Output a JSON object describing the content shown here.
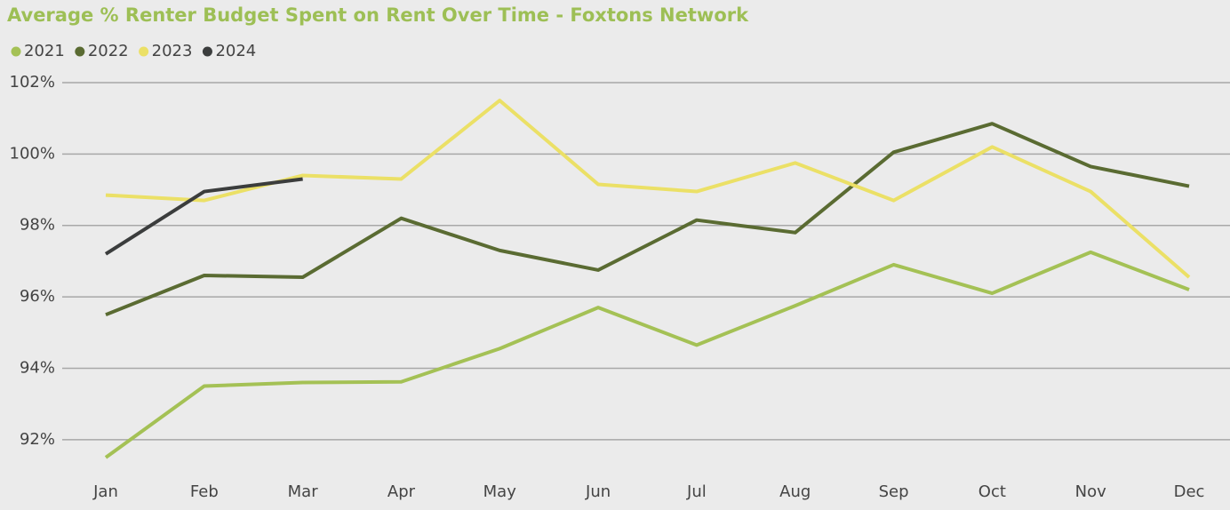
{
  "chart_data": {
    "type": "line",
    "title": "Average % Renter Budget Spent on Rent Over Time - Foxtons Network",
    "categories": [
      "Jan",
      "Feb",
      "Mar",
      "Apr",
      "May",
      "Jun",
      "Jul",
      "Aug",
      "Sep",
      "Oct",
      "Nov",
      "Dec"
    ],
    "series": [
      {
        "name": "2021",
        "color": "#a4c155",
        "values": [
          91.5,
          93.5,
          93.6,
          93.62,
          94.55,
          95.7,
          94.65,
          95.75,
          96.9,
          96.1,
          97.25,
          96.2
        ]
      },
      {
        "name": "2022",
        "color": "#5a6b32",
        "values": [
          95.5,
          96.6,
          96.55,
          98.2,
          97.3,
          96.75,
          98.15,
          97.8,
          100.05,
          100.85,
          99.65,
          99.1
        ]
      },
      {
        "name": "2023",
        "color": "#ebe066",
        "values": [
          98.85,
          98.7,
          99.4,
          99.3,
          101.5,
          99.15,
          98.95,
          99.75,
          98.7,
          100.2,
          98.95,
          96.55
        ]
      },
      {
        "name": "2024",
        "color": "#3b3d3d",
        "values": [
          97.2,
          98.95,
          99.3,
          null,
          null,
          null,
          null,
          null,
          null,
          null,
          null,
          null
        ]
      }
    ],
    "ylim": [
      91,
      102
    ],
    "yticks": [
      {
        "value": 92,
        "label": "92%"
      },
      {
        "value": 94,
        "label": "94%"
      },
      {
        "value": 96,
        "label": "96%"
      },
      {
        "value": 98,
        "label": "98%"
      },
      {
        "value": 100,
        "label": "100%"
      },
      {
        "value": 102,
        "label": "102%"
      }
    ],
    "grid": true
  }
}
